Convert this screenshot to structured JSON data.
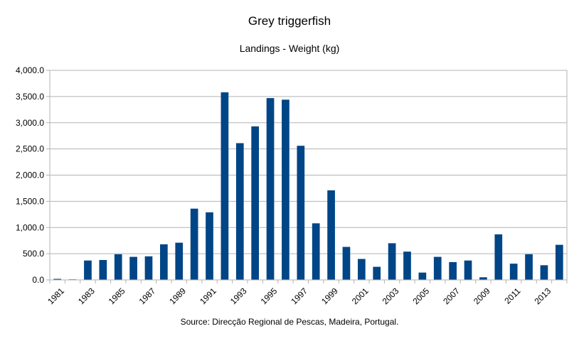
{
  "chart_data": {
    "type": "bar",
    "title": "Grey triggerfish",
    "subtitle": "Landings - Weight (kg)",
    "source": "Source: Direcção Regional de Pescas, Madeira, Portugal.",
    "categories": [
      "1981",
      "1982",
      "1983",
      "1984",
      "1985",
      "1986",
      "1987",
      "1988",
      "1989",
      "1990",
      "1991",
      "1992",
      "1993",
      "1994",
      "1995",
      "1996",
      "1997",
      "1998",
      "1999",
      "2000",
      "2001",
      "2002",
      "2003",
      "2004",
      "2005",
      "2006",
      "2007",
      "2008",
      "2009",
      "2010",
      "2011",
      "2012",
      "2013",
      "2014"
    ],
    "x_tick_labels": [
      "1981",
      "1983",
      "1985",
      "1987",
      "1989",
      "1991",
      "1993",
      "1995",
      "1997",
      "1999",
      "2001",
      "2003",
      "2005",
      "2007",
      "2009",
      "2011",
      "2013"
    ],
    "values": [
      20,
      5,
      370,
      380,
      490,
      440,
      450,
      680,
      710,
      1360,
      1290,
      3580,
      2610,
      2930,
      3470,
      3440,
      2560,
      1080,
      1710,
      630,
      400,
      250,
      700,
      540,
      140,
      440,
      340,
      370,
      50,
      870,
      310,
      490,
      280,
      670
    ],
    "y_tick_labels": [
      "0.0",
      "500.0",
      "1,000.0",
      "1,500.0",
      "2,000.0",
      "2,500.0",
      "3,000.0",
      "3,500.0",
      "4,000.0"
    ],
    "ylim": [
      0,
      4000
    ],
    "ytick_step": 500,
    "grid": true,
    "bar_color": "#004586",
    "grid_color": "#b3b3b3"
  }
}
